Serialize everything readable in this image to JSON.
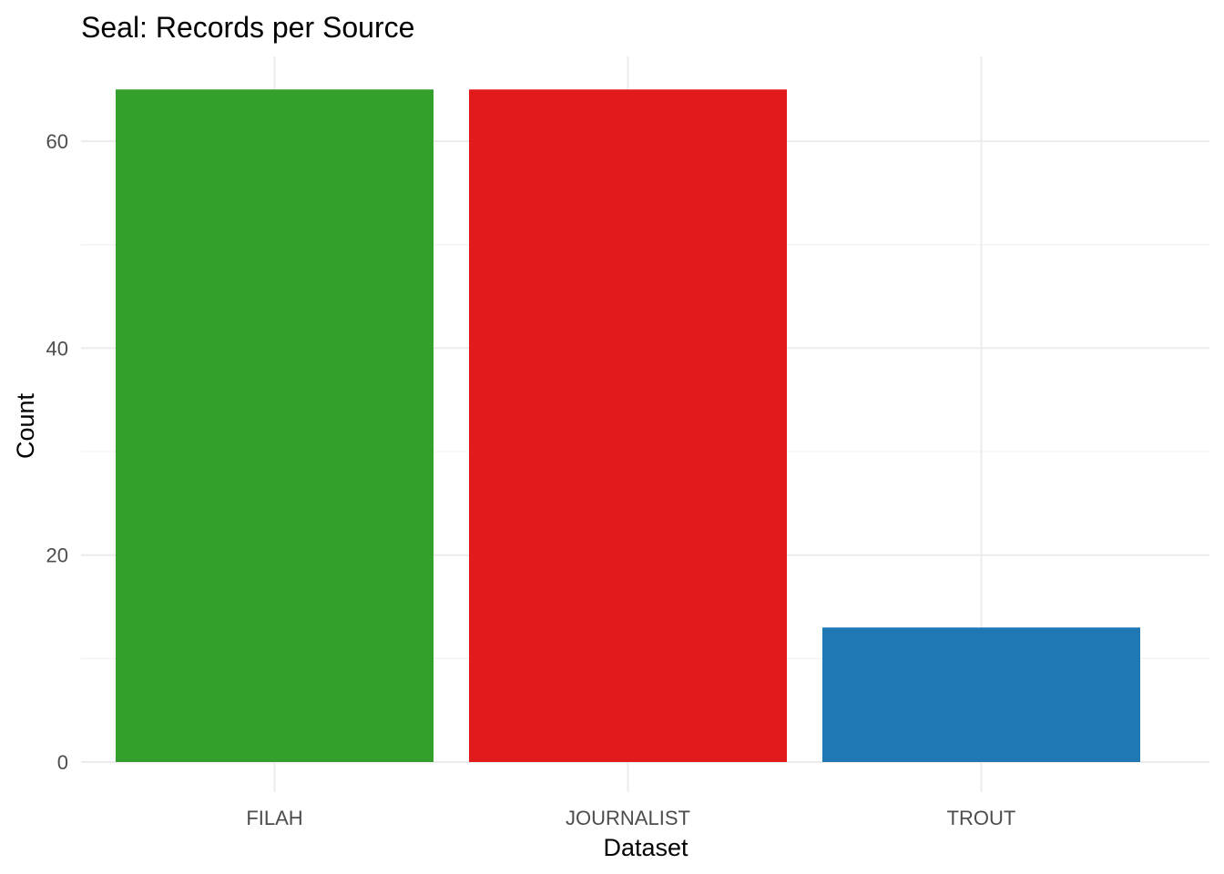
{
  "chart_data": {
    "type": "bar",
    "title": "Seal: Records per Source",
    "xlabel": "Dataset",
    "ylabel": "Count",
    "categories": [
      "FILAH",
      "JOURNALIST",
      "TROUT"
    ],
    "values": [
      65,
      65,
      13
    ],
    "colors": [
      "#33a02c",
      "#e31a1c",
      "#1f78b4"
    ],
    "yticks": [
      0,
      20,
      40,
      60
    ],
    "ylim": [
      0,
      68.25
    ],
    "grid": true,
    "legend": "none"
  }
}
